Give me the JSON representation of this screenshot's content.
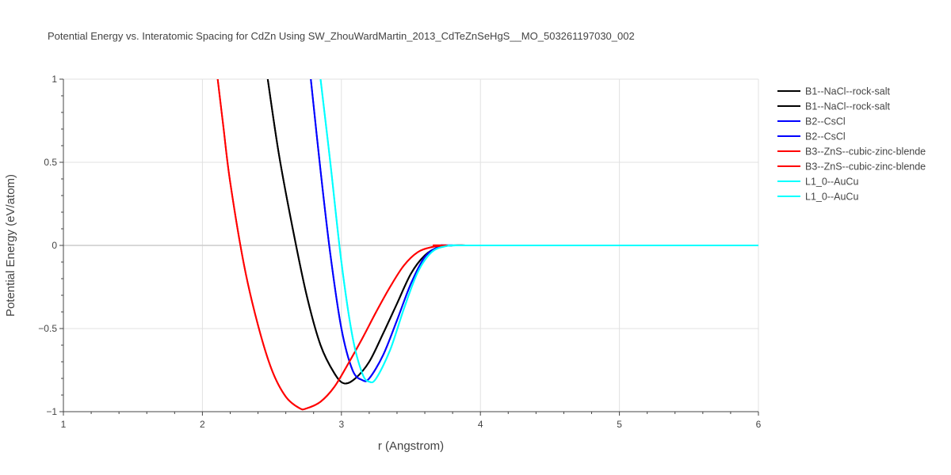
{
  "chart_data": {
    "type": "line",
    "title": "Potential Energy vs. Interatomic Spacing for CdZn Using SW_ZhouWardMartin_2013_CdTeZnSeHgS__MO_503261197030_002",
    "xlabel": "r (Angstrom)",
    "ylabel": "Potential Energy (eV/atom)",
    "xlim": [
      1,
      6
    ],
    "ylim": [
      -1,
      1
    ],
    "xticks": [
      1,
      2,
      3,
      4,
      5,
      6
    ],
    "xtick_labels": [
      "1",
      "2",
      "3",
      "4",
      "5",
      "6"
    ],
    "yticks": [
      -1,
      -0.5,
      0,
      0.5,
      1
    ],
    "ytick_labels": [
      "−1",
      "−0.5",
      "0",
      "0.5",
      "1"
    ],
    "grid": true,
    "legend_position": "right",
    "series": [
      {
        "name": "B1--NaCl--rock-salt",
        "color": "#000000",
        "x": [
          2.47,
          2.55,
          2.65,
          2.75,
          2.85,
          2.95,
          3.02,
          3.1,
          3.2,
          3.3,
          3.4,
          3.5,
          3.6,
          3.7,
          3.8,
          3.9,
          4.0,
          6.0
        ],
        "y": [
          1.0,
          0.55,
          0.1,
          -0.3,
          -0.6,
          -0.77,
          -0.83,
          -0.8,
          -0.7,
          -0.53,
          -0.35,
          -0.17,
          -0.06,
          -0.01,
          0.0,
          0.0,
          0.0,
          0.0
        ]
      },
      {
        "name": "B1--NaCl--rock-salt",
        "color": "#000000",
        "x": [
          2.47,
          2.55,
          2.65,
          2.75,
          2.85,
          2.95,
          3.02,
          3.1,
          3.2,
          3.3,
          3.4,
          3.5,
          3.6,
          3.7,
          3.8,
          3.9,
          4.0,
          6.0
        ],
        "y": [
          1.0,
          0.55,
          0.1,
          -0.3,
          -0.6,
          -0.77,
          -0.83,
          -0.8,
          -0.7,
          -0.53,
          -0.35,
          -0.17,
          -0.06,
          -0.01,
          0.0,
          0.0,
          0.0,
          0.0
        ]
      },
      {
        "name": "B2--CsCl",
        "color": "#0000ff",
        "x": [
          2.78,
          2.85,
          2.92,
          3.0,
          3.08,
          3.15,
          3.2,
          3.3,
          3.4,
          3.5,
          3.6,
          3.7,
          3.8,
          3.9,
          6.0
        ],
        "y": [
          1.0,
          0.45,
          -0.05,
          -0.5,
          -0.75,
          -0.81,
          -0.8,
          -0.66,
          -0.45,
          -0.23,
          -0.07,
          -0.01,
          0.0,
          0.0,
          0.0
        ]
      },
      {
        "name": "B2--CsCl",
        "color": "#0000ff",
        "x": [
          2.78,
          2.85,
          2.92,
          3.0,
          3.08,
          3.15,
          3.2,
          3.3,
          3.4,
          3.5,
          3.6,
          3.7,
          3.8,
          3.9,
          6.0
        ],
        "y": [
          1.0,
          0.45,
          -0.05,
          -0.5,
          -0.75,
          -0.81,
          -0.8,
          -0.66,
          -0.45,
          -0.23,
          -0.07,
          -0.01,
          0.0,
          0.0,
          0.0
        ]
      },
      {
        "name": "B3--ZnS--cubic-zinc-blende",
        "color": "#ff0000",
        "x": [
          2.11,
          2.15,
          2.2,
          2.3,
          2.4,
          2.5,
          2.6,
          2.7,
          2.75,
          2.85,
          2.95,
          3.05,
          3.15,
          3.25,
          3.35,
          3.45,
          3.55,
          3.65,
          3.75,
          3.85,
          6.0
        ],
        "y": [
          1.0,
          0.72,
          0.38,
          -0.12,
          -0.48,
          -0.75,
          -0.91,
          -0.98,
          -0.98,
          -0.94,
          -0.85,
          -0.71,
          -0.56,
          -0.4,
          -0.25,
          -0.12,
          -0.04,
          -0.01,
          0.0,
          0.0,
          0.0
        ]
      },
      {
        "name": "B3--ZnS--cubic-zinc-blende",
        "color": "#ff0000",
        "x": [
          2.11,
          2.15,
          2.2,
          2.3,
          2.4,
          2.5,
          2.6,
          2.7,
          2.75,
          2.85,
          2.95,
          3.05,
          3.15,
          3.25,
          3.35,
          3.45,
          3.55,
          3.65,
          3.75,
          3.85,
          6.0
        ],
        "y": [
          1.0,
          0.72,
          0.38,
          -0.12,
          -0.48,
          -0.75,
          -0.91,
          -0.98,
          -0.98,
          -0.94,
          -0.85,
          -0.71,
          -0.56,
          -0.4,
          -0.25,
          -0.12,
          -0.04,
          -0.01,
          0.0,
          0.0,
          0.0
        ]
      },
      {
        "name": "L1_0--AuCu",
        "color": "#00ffff",
        "x": [
          2.85,
          2.92,
          3.0,
          3.08,
          3.15,
          3.2,
          3.25,
          3.35,
          3.45,
          3.55,
          3.65,
          3.75,
          3.85,
          3.95,
          6.0
        ],
        "y": [
          1.0,
          0.5,
          -0.1,
          -0.55,
          -0.77,
          -0.82,
          -0.8,
          -0.63,
          -0.38,
          -0.16,
          -0.04,
          -0.005,
          0.0,
          0.0,
          0.0
        ]
      },
      {
        "name": "L1_0--AuCu",
        "color": "#00ffff",
        "x": [
          2.85,
          2.92,
          3.0,
          3.08,
          3.15,
          3.2,
          3.25,
          3.35,
          3.45,
          3.55,
          3.65,
          3.75,
          3.85,
          3.95,
          6.0
        ],
        "y": [
          1.0,
          0.5,
          -0.1,
          -0.55,
          -0.77,
          -0.82,
          -0.8,
          -0.63,
          -0.38,
          -0.16,
          -0.04,
          -0.005,
          0.0,
          0.0,
          0.0
        ]
      }
    ]
  }
}
